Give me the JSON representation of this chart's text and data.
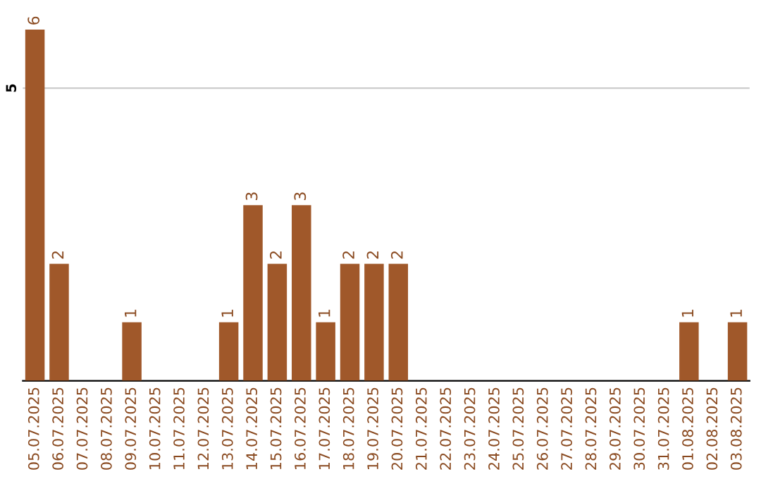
{
  "chart_data": {
    "type": "bar",
    "categories": [
      "05.07.2025",
      "06.07.2025",
      "07.07.2025",
      "08.07.2025",
      "09.07.2025",
      "10.07.2025",
      "11.07.2025",
      "12.07.2025",
      "13.07.2025",
      "14.07.2025",
      "15.07.2025",
      "16.07.2025",
      "17.07.2025",
      "18.07.2025",
      "19.07.2025",
      "20.07.2025",
      "21.07.2025",
      "22.07.2025",
      "23.07.2025",
      "24.07.2025",
      "25.07.2025",
      "26.07.2025",
      "27.07.2025",
      "28.07.2025",
      "29.07.2025",
      "30.07.2025",
      "31.07.2025",
      "01.08.2025",
      "02.08.2025",
      "03.08.2025"
    ],
    "values": [
      6,
      2,
      0,
      0,
      1,
      0,
      0,
      0,
      1,
      3,
      2,
      3,
      1,
      2,
      2,
      2,
      0,
      0,
      0,
      0,
      0,
      0,
      0,
      0,
      0,
      0,
      0,
      1,
      0,
      1
    ],
    "value_labels": [
      "6",
      "2",
      null,
      null,
      "1",
      null,
      null,
      null,
      "1",
      "3",
      "2",
      "3",
      "1",
      "2",
      "2",
      "2",
      null,
      null,
      null,
      null,
      null,
      null,
      null,
      null,
      null,
      null,
      null,
      "1",
      null,
      "1"
    ],
    "color": "#a0582a",
    "ref_lines": [
      {
        "axis": "y",
        "value": 5,
        "label": "5",
        "color": "#cccccc"
      }
    ]
  }
}
